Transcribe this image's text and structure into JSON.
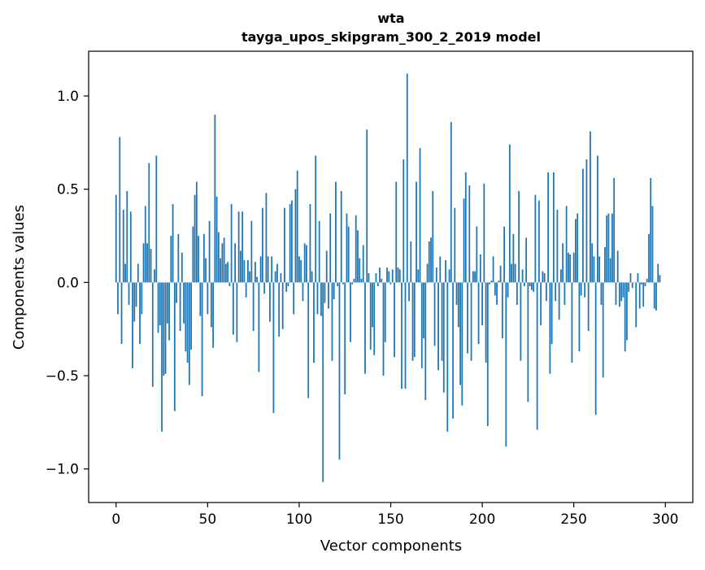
{
  "chart_data": {
    "type": "bar",
    "title": "wta",
    "subtitle": "tayga_upos_skipgram_300_2_2019 model",
    "xlabel": "Vector components",
    "ylabel": "Components values",
    "xlim": [
      -15,
      315
    ],
    "ylim": [
      -1.18,
      1.24
    ],
    "xticks": [
      0,
      50,
      100,
      150,
      200,
      250,
      300
    ],
    "xtick_labels": [
      "0",
      "50",
      "100",
      "150",
      "200",
      "250",
      "300"
    ],
    "yticks": [
      -1.0,
      -0.5,
      0.0,
      0.5,
      1.0
    ],
    "ytick_labels": [
      "−1.0",
      "−0.5",
      "0.0",
      "0.5",
      "1.0"
    ],
    "grid": false,
    "bar_color": "#1f77b4",
    "series": [
      {
        "values": [
          0.47,
          -0.17,
          0.78,
          -0.33,
          0.39,
          0.1,
          0.49,
          -0.12,
          0.38,
          -0.46,
          -0.21,
          -0.13,
          0.1,
          -0.33,
          -0.17,
          0.21,
          0.41,
          0.21,
          0.64,
          0.18,
          -0.56,
          0.07,
          0.68,
          -0.27,
          -0.23,
          -0.8,
          -0.5,
          -0.49,
          -0.22,
          -0.31,
          0.25,
          0.42,
          -0.69,
          -0.11,
          0.26,
          -0.26,
          0.16,
          -0.22,
          -0.37,
          -0.43,
          -0.55,
          -0.36,
          0.3,
          0.47,
          0.54,
          0.25,
          -0.18,
          -0.61,
          0.26,
          0.13,
          -0.17,
          0.33,
          -0.24,
          -0.35,
          0.9,
          0.46,
          0.27,
          0.13,
          0.21,
          0.24,
          0.1,
          0.11,
          -0.02,
          0.42,
          -0.28,
          0.21,
          -0.32,
          0.38,
          0.17,
          0.38,
          0.12,
          -0.08,
          0.12,
          0.06,
          0.33,
          -0.26,
          0.11,
          0.03,
          -0.48,
          0.14,
          0.4,
          -0.06,
          0.48,
          0.14,
          -0.21,
          0.14,
          -0.7,
          0.06,
          0.1,
          -0.29,
          0.05,
          -0.25,
          0.4,
          -0.05,
          -0.02,
          0.42,
          0.44,
          -0.17,
          0.5,
          0.6,
          0.14,
          0.12,
          -0.1,
          0.21,
          0.2,
          -0.62,
          0.42,
          0.06,
          -0.43,
          0.68,
          -0.17,
          0.33,
          -0.18,
          -1.07,
          -0.11,
          0.17,
          -0.14,
          0.37,
          -0.42,
          -0.09,
          0.54,
          -0.02,
          -0.95,
          0.49,
          -0.01,
          -0.6,
          0.37,
          0.3,
          -0.32,
          -0.01,
          0.02,
          0.36,
          0.28,
          0.13,
          0.02,
          0.2,
          -0.49,
          0.82,
          0.05,
          -0.36,
          -0.24,
          -0.39,
          0.05,
          -0.02,
          0.08,
          0.02,
          -0.5,
          -0.32,
          0.08,
          0.06,
          -0.01,
          0.07,
          -0.4,
          0.54,
          0.08,
          0.07,
          -0.57,
          0.66,
          -0.57,
          1.12,
          -0.1,
          0.22,
          -0.42,
          -0.4,
          0.54,
          0.07,
          0.72,
          -0.46,
          -0.3,
          -0.63,
          0.1,
          0.22,
          0.24,
          0.49,
          -0.34,
          0.08,
          -0.47,
          0.14,
          -0.42,
          -0.59,
          0.12,
          -0.8,
          0.07,
          0.86,
          -0.73,
          0.4,
          -0.12,
          -0.24,
          -0.55,
          -0.66,
          0.45,
          0.59,
          -0.38,
          0.52,
          -0.42,
          0.06,
          0.06,
          0.3,
          -0.33,
          0.15,
          -0.23,
          0.53,
          -0.43,
          -0.77,
          -0.01,
          0.01,
          0.14,
          -0.07,
          -0.12,
          0.01,
          0.09,
          -0.3,
          0.3,
          -0.88,
          -0.08,
          0.74,
          0.1,
          0.26,
          0.1,
          -0.12,
          0.49,
          -0.42,
          0.07,
          -0.02,
          0.24,
          -0.64,
          -0.02,
          -0.04,
          -0.05,
          0.47,
          -0.79,
          0.44,
          -0.23,
          0.06,
          0.05,
          -0.1,
          0.59,
          -0.49,
          -0.33,
          0.59,
          -0.1,
          0.39,
          -0.2,
          0.07,
          0.21,
          -0.12,
          0.41,
          0.16,
          0.15,
          -0.43,
          0.16,
          0.34,
          0.37,
          -0.37,
          -0.07,
          0.61,
          -0.08,
          0.66,
          -0.26,
          0.81,
          0.21,
          0.14,
          -0.71,
          0.68,
          0.14,
          -0.12,
          -0.51,
          0.19,
          0.36,
          0.37,
          0.13,
          0.37,
          0.56,
          -0.12,
          0.17,
          -0.13,
          -0.1,
          -0.08,
          -0.37,
          -0.31,
          -0.05,
          0.05,
          -0.03,
          0.0,
          -0.24,
          0.05,
          -0.14,
          -0.01,
          -0.13,
          -0.02,
          0.02,
          0.26,
          0.56,
          0.41,
          -0.14,
          -0.15,
          0.1,
          0.04
        ]
      }
    ]
  }
}
